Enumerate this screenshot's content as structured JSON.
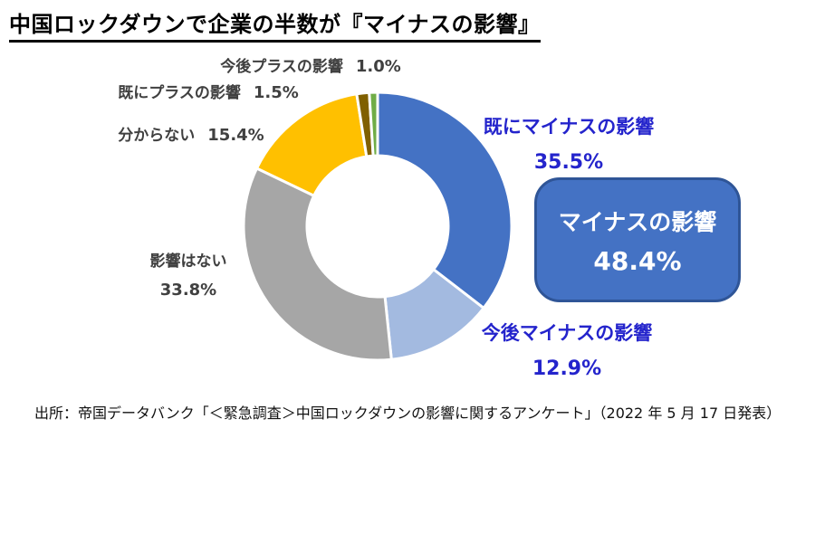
{
  "title": "中国ロックダウンで企業の半数が『マイナスの影響』",
  "chart_data": {
    "type": "pie",
    "subtype": "donut",
    "title": "中国ロックダウンで企業の半数が『マイナスの影響』",
    "categories": [
      "既にマイナスの影響",
      "今後マイナスの影響",
      "影響はない",
      "分からない",
      "既にプラスの影響",
      "今後プラスの影響"
    ],
    "values": [
      35.5,
      12.9,
      33.8,
      15.4,
      1.5,
      1.0
    ],
    "unit": "%",
    "colors": [
      "#4472C4",
      "#A3BAE0",
      "#A6A6A6",
      "#FFC000",
      "#806000",
      "#70AD47"
    ],
    "start_angle_deg": 0,
    "direction": "clockwise",
    "inner_radius_ratio": 0.53,
    "legend_position": "none",
    "gridlines": false,
    "annotation": {
      "label": "マイナスの影響",
      "value": "48.4%",
      "note": "combined share of 既にマイナスの影響 + 今後マイナスの影響"
    }
  },
  "labels": {
    "future_plus": {
      "text": "今後プラスの影響",
      "pct": "1.0%"
    },
    "already_plus": {
      "text": "既にプラスの影響",
      "pct": "1.5%"
    },
    "unknown": {
      "text": "分からない",
      "pct": "15.4%"
    },
    "no_impact": {
      "text": "影響はない",
      "pct": "33.8%"
    },
    "already_minus": {
      "text": "既にマイナスの影響",
      "pct": "35.5%"
    },
    "future_minus": {
      "text": "今後マイナスの影響",
      "pct": "12.9%"
    }
  },
  "callout": {
    "label": "マイナスの影響",
    "value": "48.4%"
  },
  "source": "出所：帝国データバンク「＜緊急調査＞中国ロックダウンの影響に関するアンケート」（2022 年 5 月 17 日発表）"
}
